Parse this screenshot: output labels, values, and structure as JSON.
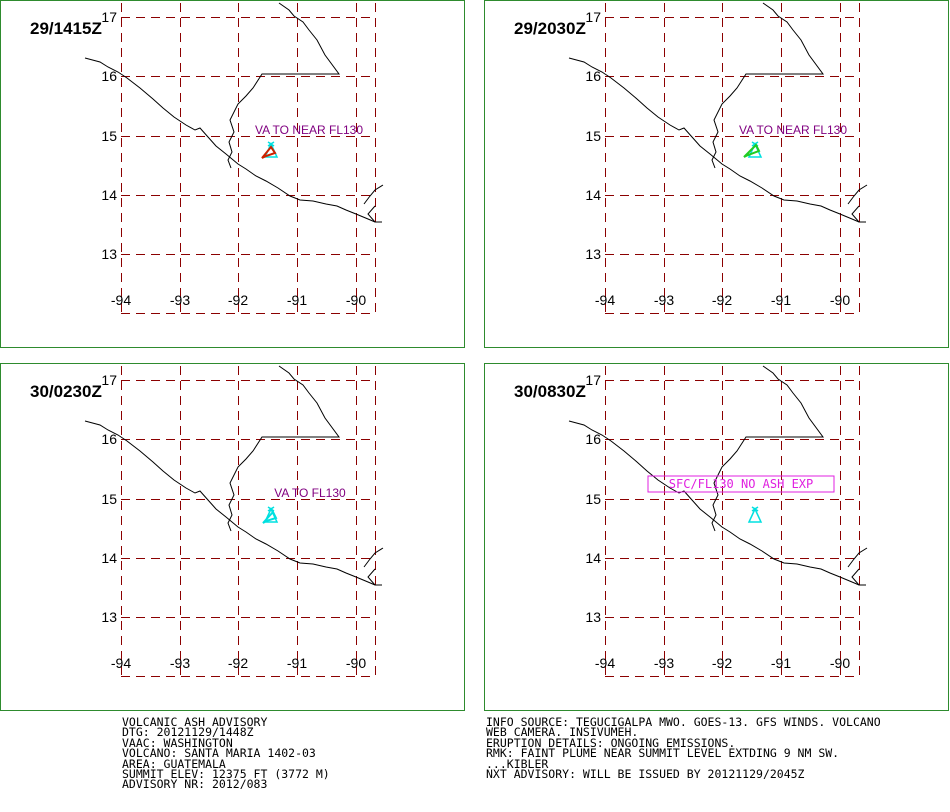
{
  "colors": {
    "frame": "#2e8b2e",
    "grid": "#8b0000",
    "coast": "#000000",
    "va_label": "#800080",
    "noash": "#e020e0",
    "volcano": "#00e0e0",
    "ash_red": "#cc2200",
    "ash_green": "#22cc22"
  },
  "map": {
    "lon_labels": [
      "-94",
      "-93",
      "-92",
      "-91",
      "-90"
    ],
    "lat_labels": [
      "17",
      "16",
      "15",
      "14",
      "13"
    ]
  },
  "panels": [
    {
      "time": "29/1415Z",
      "va_text": "VA TO NEAR FL130",
      "boxed": false,
      "ash": "red"
    },
    {
      "time": "29/2030Z",
      "va_text": "VA TO NEAR FL130",
      "boxed": false,
      "ash": "green"
    },
    {
      "time": "30/0230Z",
      "va_text": "VA TO FL130",
      "boxed": false,
      "ash": "cyan"
    },
    {
      "time": "30/0830Z",
      "va_text": "SFC/FL130 NO ASH EXP",
      "boxed": true,
      "ash": "none"
    }
  ],
  "advisory_left": [
    "VOLCANIC ASH ADVISORY",
    "DTG: 20121129/1448Z",
    "VAAC: WASHINGTON",
    "VOLCANO: SANTA MARIA 1402-03",
    "AREA: GUATEMALA",
    "SUMMIT ELEV: 12375 FT (3772 M)",
    "ADVISORY NR: 2012/083"
  ],
  "advisory_right": [
    "INFO SOURCE: TEGUCIGALPA MWO. GOES-13. GFS WINDS. VOLCANO",
    "WEB CAMERA. INSIVUMEH.",
    "ERUPTION DETAILS: ONGOING EMISSIONS.",
    "RMK: FAINT PLUME NEAR SUMMIT LEVEL EXTDING 9 NM SW.",
    "...KIBLER",
    "NXT ADVISORY: WILL BE ISSUED BY 20121129/2045Z"
  ]
}
